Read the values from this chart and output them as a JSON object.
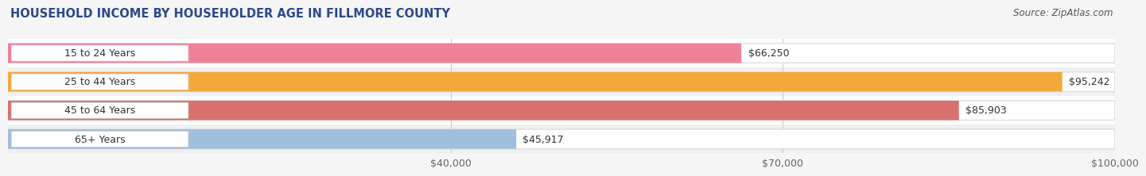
{
  "title": "HOUSEHOLD INCOME BY HOUSEHOLDER AGE IN FILLMORE COUNTY",
  "source": "Source: ZipAtlas.com",
  "categories": [
    "15 to 24 Years",
    "25 to 44 Years",
    "45 to 64 Years",
    "65+ Years"
  ],
  "values": [
    66250,
    95242,
    85903,
    45917
  ],
  "bar_colors": [
    "#f08098",
    "#f5a83a",
    "#d97070",
    "#a0bedd"
  ],
  "value_labels": [
    "$66,250",
    "$95,242",
    "$85,903",
    "$45,917"
  ],
  "xlim_min": 0,
  "xlim_max": 100000,
  "xticks": [
    40000,
    70000,
    100000
  ],
  "xtick_labels": [
    "$40,000",
    "$70,000",
    "$100,000"
  ],
  "background_color": "#f5f5f5",
  "bar_bg_color": "#ffffff",
  "row_bg_color": "#f0f0f0",
  "title_fontsize": 10.5,
  "source_fontsize": 8.5,
  "label_fontsize": 9,
  "value_fontsize": 9,
  "tick_fontsize": 9,
  "title_color": "#2b4a8b",
  "label_color": "#333333",
  "value_color": "#333333",
  "source_color": "#555555"
}
